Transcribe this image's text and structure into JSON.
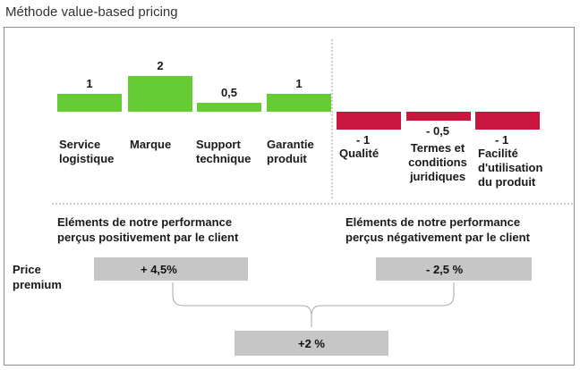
{
  "title": "Méthode value-based pricing",
  "chart_data": {
    "type": "bar",
    "categories": [
      "Service logistique",
      "Marque",
      "Support technique",
      "Garantie produit",
      "Qualité",
      "Termes et conditions juridiques",
      "Facilité d'utilisation du produit"
    ],
    "values": [
      1,
      2,
      0.5,
      1,
      -1,
      -0.5,
      -1
    ],
    "value_labels": [
      "1",
      "2",
      "0,5",
      "1",
      "- 1",
      "- 0,5",
      "- 1"
    ],
    "colors": {
      "positive": "#66cc33",
      "negative": "#c8163f"
    }
  },
  "cat_labels": {
    "c0": [
      "Service",
      "logistique"
    ],
    "c1": [
      "Marque"
    ],
    "c2": [
      "Support",
      "technique"
    ],
    "c3": [
      "Garantie",
      "produit"
    ],
    "c4": [
      "Qualité"
    ],
    "c5": [
      "Termes et",
      "conditions",
      "juridiques"
    ],
    "c6": [
      "Facilité",
      "d'utilisation",
      "du produit"
    ]
  },
  "positive_header": [
    "Eléments de notre performance",
    "perçus positivement par le client"
  ],
  "negative_header": [
    "Eléments de notre performance",
    "perçus négativement par le client"
  ],
  "price_premium_label": [
    "Price",
    "premium"
  ],
  "box_positive": "+ 4,5%",
  "box_negative": "- 2,5 %",
  "box_total": "+2 %"
}
